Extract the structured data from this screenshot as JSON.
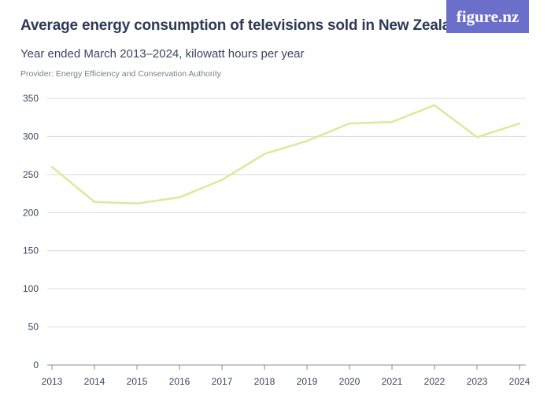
{
  "header": {
    "title": "Average energy consumption of televisions sold in New Zealand",
    "subtitle": "Year ended March 2013–2024, kilowatt hours per year",
    "provider": "Provider: Energy Efficiency and Conservation Authority",
    "logo_text": "figure.nz"
  },
  "colors": {
    "line": "#d4ed9a",
    "grid": "#d9d9d9",
    "logo_bg": "#6b6fc9"
  },
  "chart_data": {
    "type": "line",
    "title": "Average energy consumption of televisions sold in New Zealand",
    "subtitle": "Year ended March 2013–2024, kilowatt hours per year",
    "xlabel": "",
    "ylabel": "",
    "ylim": [
      0,
      350
    ],
    "yticks": [
      0,
      50,
      100,
      150,
      200,
      250,
      300,
      350
    ],
    "categories": [
      "2013",
      "2014",
      "2015",
      "2016",
      "2017",
      "2018",
      "2019",
      "2020",
      "2021",
      "2022",
      "2023",
      "2024"
    ],
    "series": [
      {
        "values": [
          260,
          214,
          212,
          220,
          243,
          277,
          294,
          317,
          319,
          341,
          299,
          317
        ]
      }
    ],
    "grid": true
  }
}
